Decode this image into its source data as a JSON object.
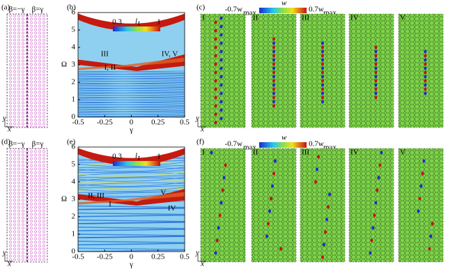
{
  "lattice_panels": [
    {
      "label": "(a)",
      "left": "β=−γ",
      "right": "β=γ",
      "y_axis": "y",
      "x_axis": "x"
    },
    {
      "label": "(d)",
      "left": "β=−γ",
      "right": "β=γ",
      "y_axis": "y",
      "x_axis": "x"
    }
  ],
  "chart_data": [
    {
      "type": "band",
      "label": "(b)",
      "xlabel": "γ",
      "ylabel": "Ω",
      "xlim": [
        -0.5,
        0.5
      ],
      "xticks": [
        -0.5,
        -0.25,
        0,
        0.25,
        0.5
      ],
      "ylim": [
        0,
        6
      ],
      "yticks": [
        0,
        1,
        2,
        3,
        4,
        5,
        6
      ],
      "colorbar": {
        "title": "l",
        "subscript": "t",
        "min": 0.3,
        "max": 1
      },
      "annotations": [
        "III",
        "I, II",
        "IV, V"
      ]
    },
    {
      "type": "band",
      "label": "(e)",
      "xlabel": "γ",
      "ylabel": "Ω",
      "xlim": [
        -0.5,
        0.5
      ],
      "xticks": [
        -0.5,
        -0.25,
        0,
        0.25,
        0.5
      ],
      "ylim": [
        0,
        6
      ],
      "yticks": [
        0,
        1,
        2,
        3,
        4,
        5,
        6
      ],
      "colorbar": {
        "title": "l",
        "subscript": "t",
        "min": 0.3,
        "max": 1
      },
      "annotations": [
        "II, III",
        "I",
        "V",
        "IV"
      ]
    }
  ],
  "mode_panels": [
    {
      "label": "(c)",
      "colorbar": {
        "title": "w",
        "min_label": "-0.7w",
        "max_label": "0.7w",
        "subscript": "max"
      },
      "modes": [
        "I",
        "II",
        "III",
        "IV",
        "V"
      ],
      "y_axis": "y",
      "x_axis": "x"
    },
    {
      "label": "(f)",
      "colorbar": {
        "title": "w",
        "min_label": "-0.7w",
        "max_label": "0.7w",
        "subscript": "max"
      },
      "modes": [
        "I",
        "II",
        "III",
        "IV",
        "V"
      ],
      "y_axis": "y",
      "x_axis": "x"
    }
  ]
}
